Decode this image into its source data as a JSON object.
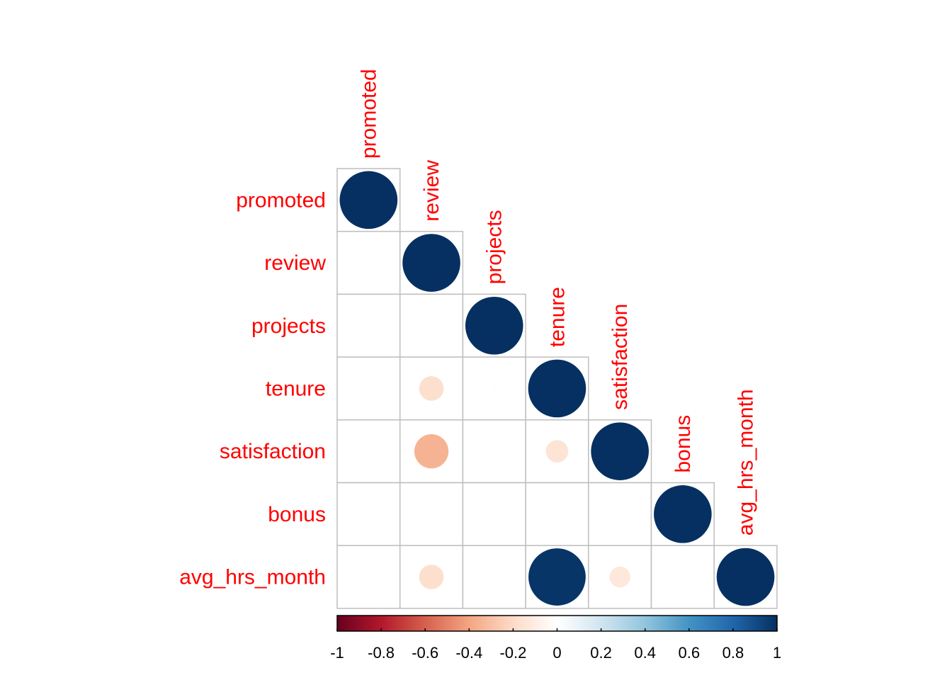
{
  "chart_data": {
    "type": "heatmap",
    "variables": [
      "promoted",
      "review",
      "projects",
      "tenure",
      "satisfaction",
      "bonus",
      "avg_hrs_month"
    ],
    "matrix_shape": "lower-triangle",
    "glyph": "circle",
    "correlations": [
      [
        1.0,
        null,
        null,
        null,
        null,
        null,
        null
      ],
      [
        0.0,
        1.0,
        null,
        null,
        null,
        null,
        null
      ],
      [
        0.01,
        0.0,
        1.0,
        null,
        null,
        null,
        null
      ],
      [
        0.0,
        -0.18,
        0.01,
        1.0,
        null,
        null,
        null
      ],
      [
        0.01,
        -0.35,
        0.0,
        -0.15,
        1.0,
        null,
        null
      ],
      [
        0.0,
        0.0,
        0.0,
        0.0,
        0.0,
        1.0,
        null
      ],
      [
        0.0,
        -0.18,
        0.01,
        0.98,
        -0.13,
        0.0,
        1.0
      ]
    ],
    "colorbar": {
      "range": [
        -1,
        1
      ],
      "ticks": [
        "-1",
        "-0.8",
        "-0.6",
        "-0.4",
        "-0.2",
        "0",
        "0.2",
        "0.4",
        "0.6",
        "0.8",
        "1"
      ],
      "colors": [
        "#67001F",
        "#B2182B",
        "#D6604D",
        "#F4A582",
        "#FDDBC7",
        "#FFFFFF",
        "#D1E5F0",
        "#92C5DE",
        "#4393C3",
        "#2166AC",
        "#053061"
      ]
    },
    "label_color": "#FF0000",
    "grid_color": "#BEBEBE"
  }
}
